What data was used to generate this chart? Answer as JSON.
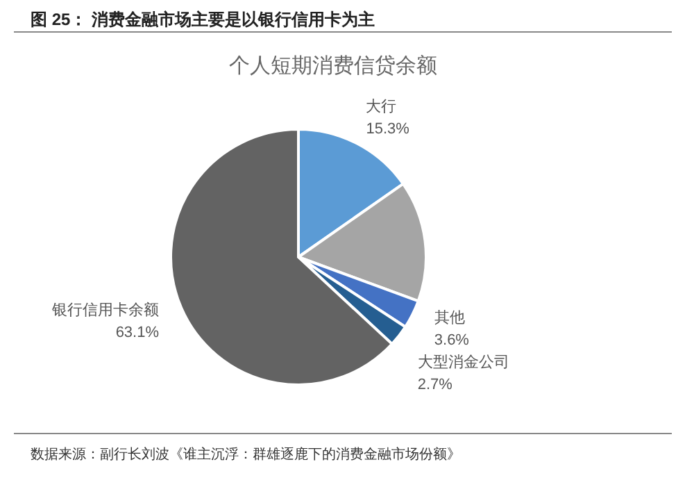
{
  "chart_data": {
    "type": "pie",
    "title": "图 25： 消费金融市场主要是以银行信用卡为主",
    "subtitle": "个人短期消费信贷余额",
    "categories": [
      "大行",
      null,
      "其他",
      "大型消金公司",
      "银行信用卡余额"
    ],
    "values": [
      15.3,
      15.3,
      3.6,
      2.7,
      63.1
    ],
    "colors": [
      "#5b9bd5",
      "#a5a5a5",
      "#4472c4",
      "#255e91",
      "#636363"
    ],
    "value_labels": [
      "15.3%",
      null,
      "3.6%",
      "2.7%",
      "63.1%"
    ],
    "annotations": [
      "数据来源：副行长刘波《谁主沉浮：群雄逐鹿下的消费金融市场份额》"
    ]
  }
}
